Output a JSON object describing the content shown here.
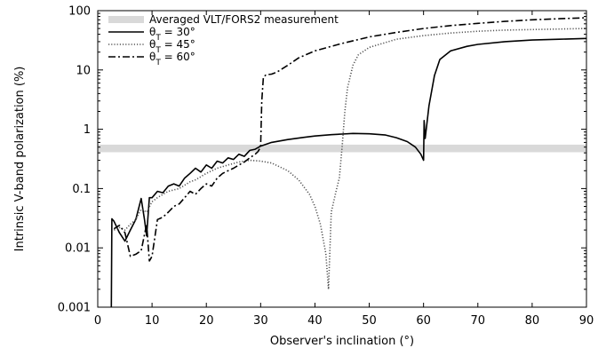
{
  "chart_data": {
    "type": "line",
    "xlabel": "Observer's inclination (°)",
    "ylabel": "Intrinsic V-band polarization (%)",
    "xlim": [
      0,
      90
    ],
    "ylim": [
      0.001,
      100
    ],
    "yscale": "log",
    "x_ticks": [
      "0",
      "10",
      "20",
      "30",
      "40",
      "50",
      "60",
      "70",
      "80",
      "90"
    ],
    "y_ticks": [
      "0.001",
      "0.01",
      "0.1",
      "1",
      "10",
      "100"
    ],
    "legend_position": "top-left",
    "band": {
      "name": "Averaged VLT/FORS2 measurement",
      "y_low": 0.41,
      "y_high": 0.55,
      "color": "#d9d9d9"
    },
    "series": [
      {
        "name": "θT = 30°",
        "label_main": "θ",
        "label_sub": "T",
        "label_tail": " = 30°",
        "style": "solid",
        "color": "#000000",
        "points": [
          [
            2.5,
            0.001
          ],
          [
            2.6,
            0.031
          ],
          [
            3,
            0.028
          ],
          [
            4,
            0.018
          ],
          [
            5,
            0.013
          ],
          [
            6,
            0.02
          ],
          [
            7,
            0.03
          ],
          [
            8,
            0.068
          ],
          [
            8.6,
            0.03
          ],
          [
            9,
            0.016
          ],
          [
            9.5,
            0.07
          ],
          [
            10,
            0.07
          ],
          [
            11,
            0.09
          ],
          [
            12,
            0.085
          ],
          [
            13,
            0.11
          ],
          [
            14,
            0.12
          ],
          [
            15,
            0.11
          ],
          [
            16,
            0.15
          ],
          [
            17,
            0.18
          ],
          [
            18,
            0.22
          ],
          [
            19,
            0.19
          ],
          [
            20,
            0.25
          ],
          [
            21,
            0.22
          ],
          [
            22,
            0.29
          ],
          [
            23,
            0.27
          ],
          [
            24,
            0.33
          ],
          [
            25,
            0.31
          ],
          [
            26,
            0.38
          ],
          [
            27,
            0.35
          ],
          [
            28,
            0.44
          ],
          [
            29,
            0.46
          ],
          [
            30,
            0.52
          ],
          [
            32,
            0.6
          ],
          [
            35,
            0.67
          ],
          [
            38,
            0.73
          ],
          [
            40,
            0.77
          ],
          [
            43,
            0.81
          ],
          [
            45,
            0.83
          ],
          [
            47,
            0.85
          ],
          [
            50,
            0.84
          ],
          [
            53,
            0.8
          ],
          [
            55,
            0.72
          ],
          [
            57,
            0.62
          ],
          [
            58.5,
            0.5
          ],
          [
            59.5,
            0.38
          ],
          [
            60,
            0.3
          ],
          [
            60.1,
            1.4
          ],
          [
            60.3,
            0.7
          ],
          [
            61,
            2.5
          ],
          [
            62,
            8
          ],
          [
            63,
            15
          ],
          [
            65,
            21
          ],
          [
            68,
            25
          ],
          [
            70,
            27
          ],
          [
            75,
            30
          ],
          [
            80,
            32
          ],
          [
            85,
            33
          ],
          [
            90,
            34
          ]
        ]
      },
      {
        "name": "θT = 45°",
        "label_main": "θ",
        "label_sub": "T",
        "label_tail": " = 45°",
        "style": "dotted",
        "color": "#555555",
        "points": [
          [
            3,
            0.02
          ],
          [
            4,
            0.022
          ],
          [
            5,
            0.02
          ],
          [
            6,
            0.025
          ],
          [
            7,
            0.03
          ],
          [
            8,
            0.045
          ],
          [
            9,
            0.04
          ],
          [
            10,
            0.06
          ],
          [
            11,
            0.07
          ],
          [
            12,
            0.08
          ],
          [
            13,
            0.09
          ],
          [
            15,
            0.1
          ],
          [
            17,
            0.13
          ],
          [
            18,
            0.14
          ],
          [
            20,
            0.18
          ],
          [
            22,
            0.22
          ],
          [
            24,
            0.25
          ],
          [
            26,
            0.28
          ],
          [
            28,
            0.3
          ],
          [
            30,
            0.29
          ],
          [
            32,
            0.27
          ],
          [
            35,
            0.2
          ],
          [
            37,
            0.14
          ],
          [
            39,
            0.08
          ],
          [
            40,
            0.05
          ],
          [
            41,
            0.025
          ],
          [
            42,
            0.008
          ],
          [
            42.5,
            0.002
          ],
          [
            43,
            0.04
          ],
          [
            44,
            0.1
          ],
          [
            44.5,
            0.15
          ],
          [
            45,
            0.5
          ],
          [
            45.5,
            2
          ],
          [
            46,
            5
          ],
          [
            47,
            12
          ],
          [
            48,
            18
          ],
          [
            50,
            24
          ],
          [
            55,
            33
          ],
          [
            60,
            38
          ],
          [
            65,
            42
          ],
          [
            70,
            45
          ],
          [
            75,
            47
          ],
          [
            80,
            48
          ],
          [
            85,
            49
          ],
          [
            90,
            50
          ]
        ]
      },
      {
        "name": "θT = 60°",
        "label_main": "θ",
        "label_sub": "T",
        "label_tail": " = 60°",
        "style": "dashdot",
        "color": "#000000",
        "points": [
          [
            3,
            0.021
          ],
          [
            4,
            0.024
          ],
          [
            5,
            0.018
          ],
          [
            6,
            0.0072
          ],
          [
            7,
            0.0078
          ],
          [
            8,
            0.009
          ],
          [
            9,
            0.025
          ],
          [
            9.5,
            0.006
          ],
          [
            10,
            0.0072
          ],
          [
            11,
            0.03
          ],
          [
            12,
            0.033
          ],
          [
            13,
            0.04
          ],
          [
            14,
            0.05
          ],
          [
            15,
            0.055
          ],
          [
            16,
            0.07
          ],
          [
            17,
            0.09
          ],
          [
            18,
            0.08
          ],
          [
            19,
            0.1
          ],
          [
            20,
            0.12
          ],
          [
            21,
            0.11
          ],
          [
            22,
            0.15
          ],
          [
            23,
            0.18
          ],
          [
            24,
            0.2
          ],
          [
            25,
            0.22
          ],
          [
            26,
            0.25
          ],
          [
            27,
            0.28
          ],
          [
            28,
            0.33
          ],
          [
            29,
            0.38
          ],
          [
            29.5,
            0.42
          ],
          [
            30,
            0.5
          ],
          [
            30.2,
            3
          ],
          [
            30.5,
            7.5
          ],
          [
            31,
            8.3
          ],
          [
            32,
            8.5
          ],
          [
            33,
            9.2
          ],
          [
            35,
            12
          ],
          [
            37,
            16
          ],
          [
            40,
            21
          ],
          [
            45,
            28
          ],
          [
            50,
            36
          ],
          [
            55,
            43
          ],
          [
            60,
            50
          ],
          [
            65,
            56
          ],
          [
            70,
            61
          ],
          [
            75,
            66
          ],
          [
            80,
            70
          ],
          [
            85,
            73
          ],
          [
            90,
            76
          ]
        ]
      }
    ]
  }
}
